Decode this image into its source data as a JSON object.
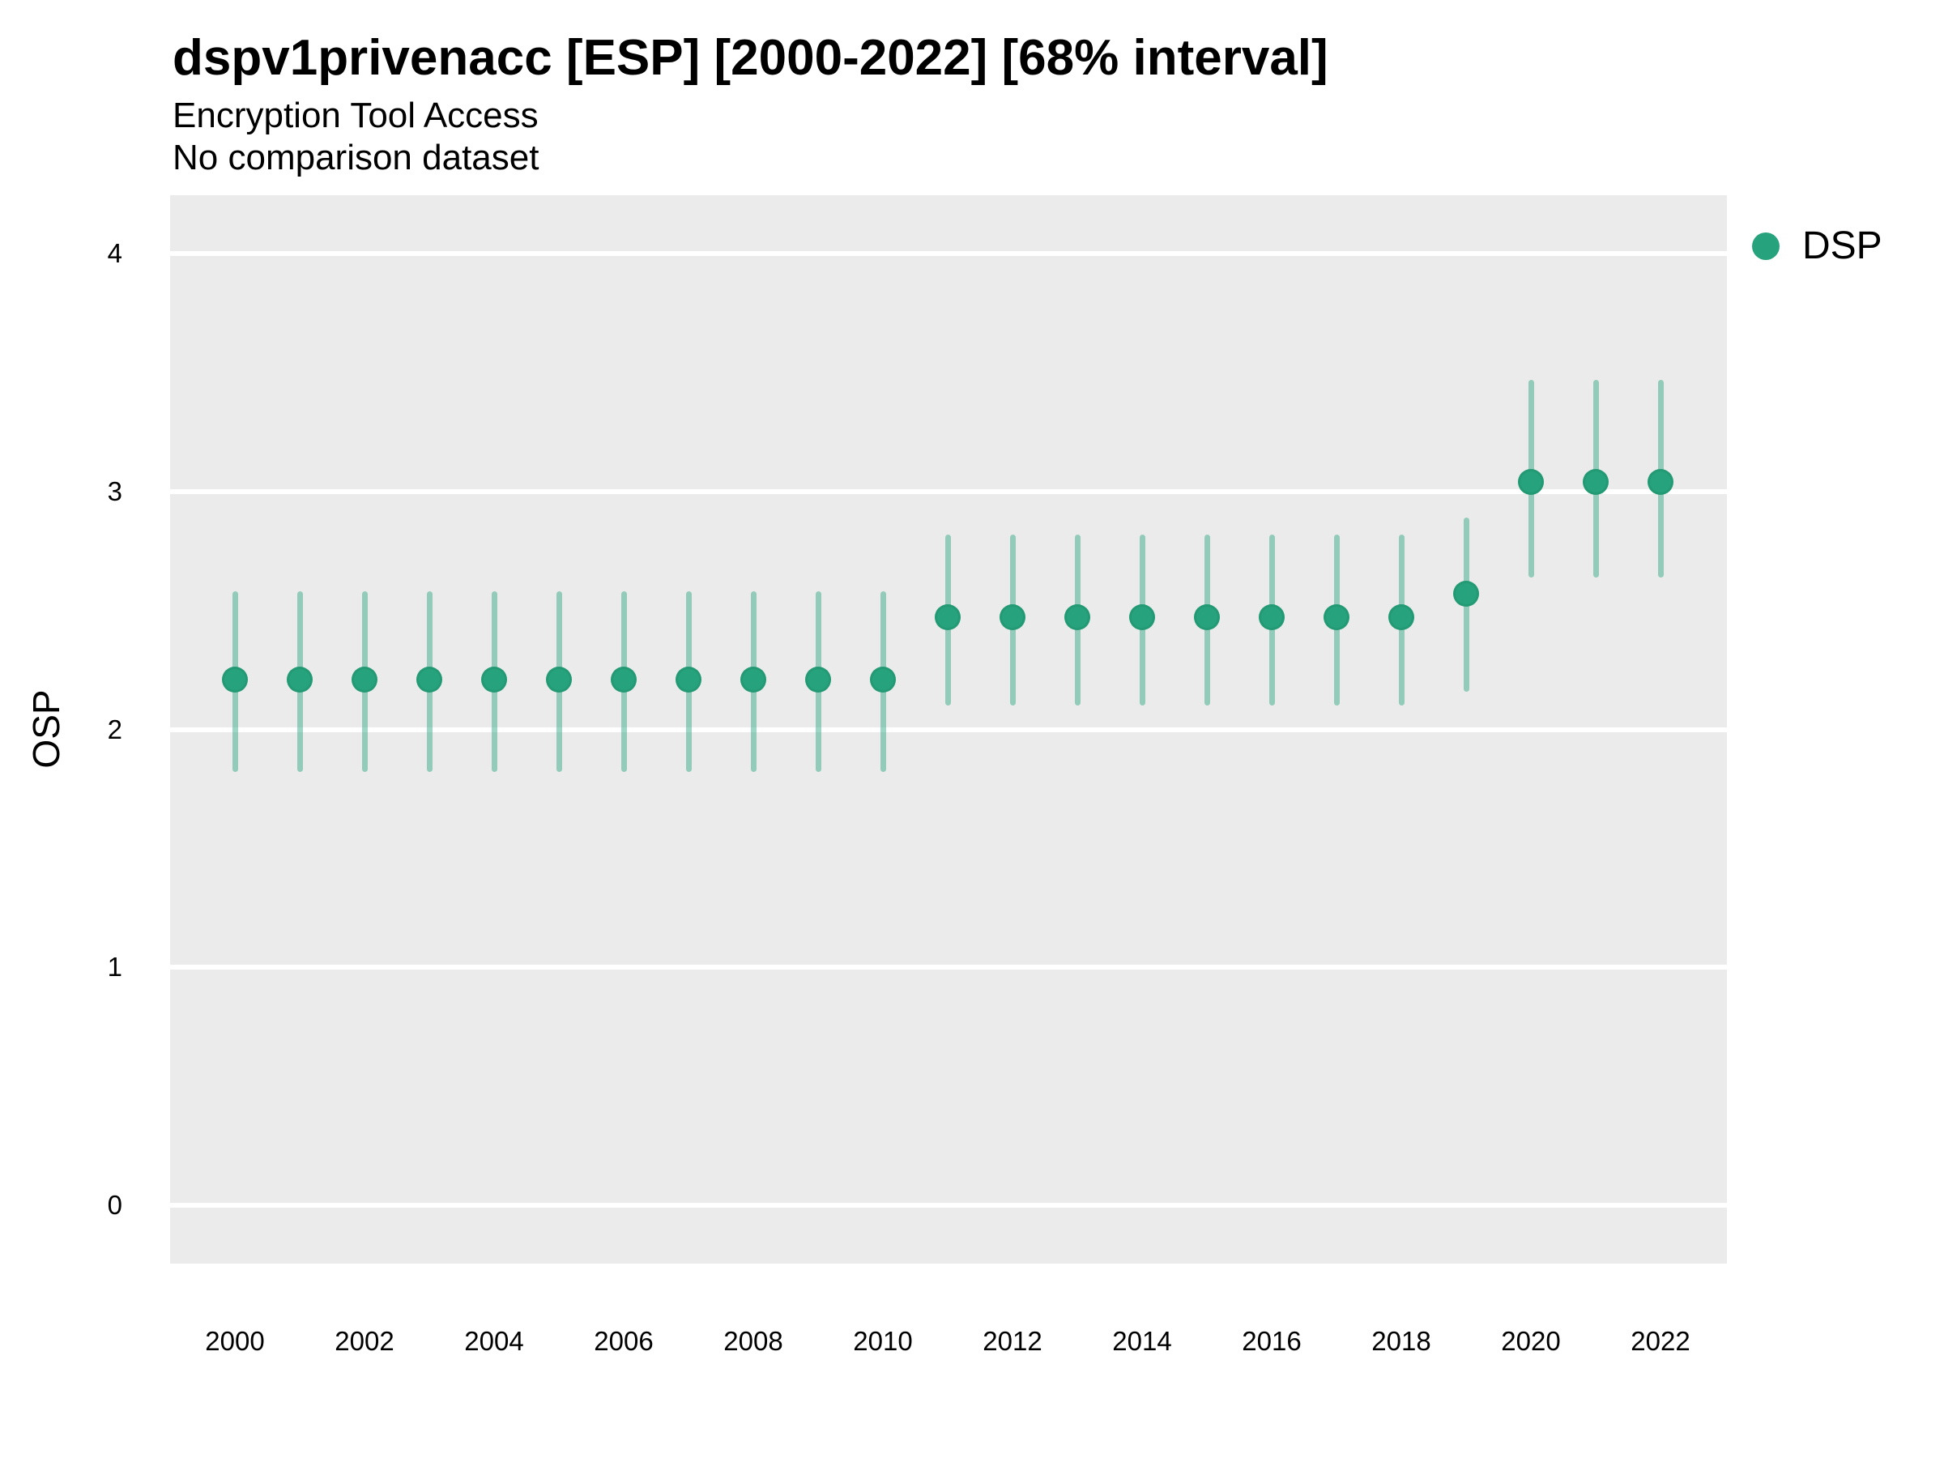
{
  "header": {
    "title": "dspv1privenacc [ESP] [2000-2022] [68% interval]",
    "subtitle_line1": "Encryption Tool Access",
    "subtitle_line2": "No comparison dataset"
  },
  "legend": {
    "items": [
      {
        "label": "DSP",
        "color": "#26a37c"
      }
    ],
    "position": "right-top"
  },
  "chart_data": {
    "type": "scatter",
    "title": "dspv1privenacc [ESP] [2000-2022] [68% interval]",
    "subtitle": "Encryption Tool Access",
    "note": "No comparison dataset",
    "interval_label": "68% interval",
    "xlabel": "",
    "ylabel": "OSP",
    "xlim": [
      1999,
      2023.05
    ],
    "ylim": [
      -0.25,
      4.25
    ],
    "y_ticks": [
      0,
      1,
      2,
      3,
      4
    ],
    "x_ticks": [
      2000,
      2002,
      2004,
      2006,
      2008,
      2010,
      2012,
      2014,
      2016,
      2018,
      2020,
      2022
    ],
    "grid": "major-horizontal-only",
    "legend_position": "right-top",
    "series": [
      {
        "name": "DSP",
        "color": "#26a37c",
        "error_bar_color": "rgba(38,163,124,0.45)",
        "points": [
          {
            "x": 2000,
            "y": 2.21,
            "lo": 1.82,
            "hi": 2.58
          },
          {
            "x": 2001,
            "y": 2.21,
            "lo": 1.82,
            "hi": 2.58
          },
          {
            "x": 2002,
            "y": 2.21,
            "lo": 1.82,
            "hi": 2.58
          },
          {
            "x": 2003,
            "y": 2.21,
            "lo": 1.82,
            "hi": 2.58
          },
          {
            "x": 2004,
            "y": 2.21,
            "lo": 1.82,
            "hi": 2.58
          },
          {
            "x": 2005,
            "y": 2.21,
            "lo": 1.82,
            "hi": 2.58
          },
          {
            "x": 2006,
            "y": 2.21,
            "lo": 1.82,
            "hi": 2.58
          },
          {
            "x": 2007,
            "y": 2.21,
            "lo": 1.82,
            "hi": 2.58
          },
          {
            "x": 2008,
            "y": 2.21,
            "lo": 1.82,
            "hi": 2.58
          },
          {
            "x": 2009,
            "y": 2.21,
            "lo": 1.82,
            "hi": 2.58
          },
          {
            "x": 2010,
            "y": 2.21,
            "lo": 1.82,
            "hi": 2.58
          },
          {
            "x": 2011,
            "y": 2.47,
            "lo": 2.1,
            "hi": 2.82
          },
          {
            "x": 2012,
            "y": 2.47,
            "lo": 2.1,
            "hi": 2.82
          },
          {
            "x": 2013,
            "y": 2.47,
            "lo": 2.1,
            "hi": 2.82
          },
          {
            "x": 2014,
            "y": 2.47,
            "lo": 2.1,
            "hi": 2.82
          },
          {
            "x": 2015,
            "y": 2.47,
            "lo": 2.1,
            "hi": 2.82
          },
          {
            "x": 2016,
            "y": 2.47,
            "lo": 2.1,
            "hi": 2.82
          },
          {
            "x": 2017,
            "y": 2.47,
            "lo": 2.1,
            "hi": 2.82
          },
          {
            "x": 2018,
            "y": 2.47,
            "lo": 2.1,
            "hi": 2.82
          },
          {
            "x": 2019,
            "y": 2.57,
            "lo": 2.16,
            "hi": 2.89
          },
          {
            "x": 2020,
            "y": 3.04,
            "lo": 2.64,
            "hi": 3.47
          },
          {
            "x": 2021,
            "y": 3.04,
            "lo": 2.64,
            "hi": 3.47
          },
          {
            "x": 2022,
            "y": 3.04,
            "lo": 2.64,
            "hi": 3.47
          }
        ]
      }
    ],
    "colors": {
      "panel_background": "#ebebeb",
      "gridline": "#ffffff",
      "point": "#26a37c",
      "error_bar": "rgba(38,163,124,0.45)",
      "text": "#000000",
      "page_background": "#ffffff"
    }
  }
}
